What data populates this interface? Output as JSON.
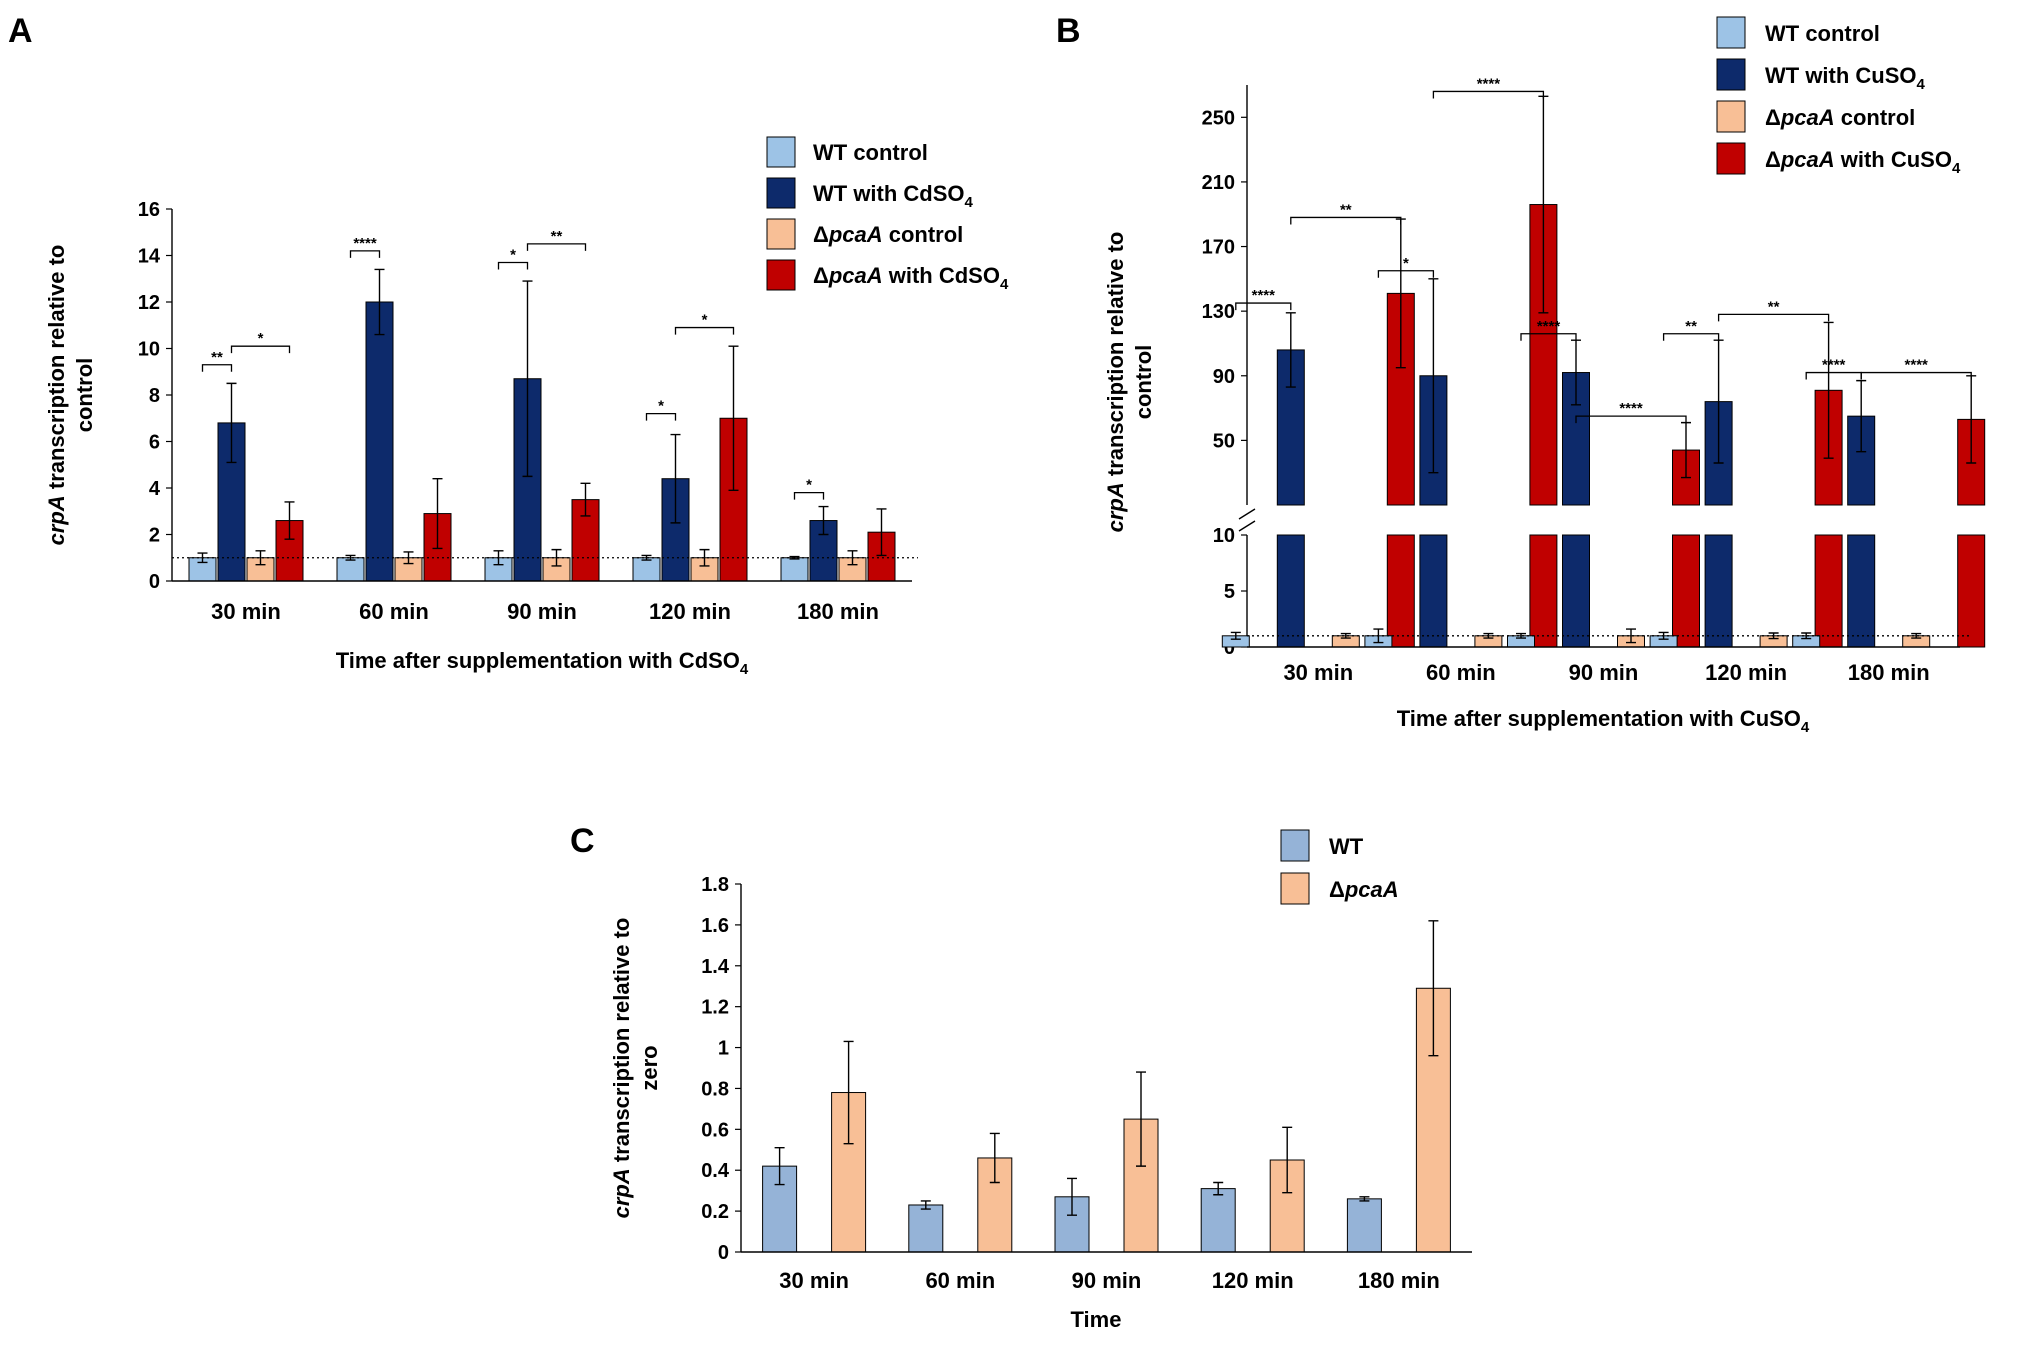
{
  "panels": {
    "A": {
      "label": "A"
    },
    "B": {
      "label": "B"
    },
    "C": {
      "label": "C"
    }
  },
  "chart_data": [
    {
      "id": "A",
      "type": "bar",
      "categories": [
        "30 min",
        "60 min",
        "90 min",
        "120 min",
        "180 min"
      ],
      "series": [
        {
          "name": "WT control",
          "color": "#9dc3e6",
          "values": [
            1.0,
            1.0,
            1.0,
            1.0,
            1.0
          ],
          "errors": [
            0.2,
            0.1,
            0.3,
            0.1,
            0.05
          ]
        },
        {
          "name": "WT with CdSO4",
          "color": "#0d2a6b",
          "values": [
            6.8,
            12.0,
            8.7,
            4.4,
            2.6
          ],
          "errors": [
            1.7,
            1.4,
            4.2,
            1.9,
            0.6
          ]
        },
        {
          "name": "ΔpcaA control",
          "color": "#f8bf96",
          "values": [
            1.0,
            1.0,
            1.0,
            1.0,
            1.0
          ],
          "errors": [
            0.3,
            0.25,
            0.35,
            0.35,
            0.3
          ]
        },
        {
          "name": "ΔpcaA with CdSO4",
          "color": "#c00000",
          "values": [
            2.6,
            2.9,
            3.5,
            7.0,
            2.1
          ],
          "errors": [
            0.8,
            1.5,
            0.7,
            3.1,
            1.0
          ]
        }
      ],
      "legend": [
        {
          "pre": "WT control",
          "ital": "",
          "post": ""
        },
        {
          "pre": "WT with CdSO",
          "ital": "",
          "post": "",
          "sub": "4"
        },
        {
          "pre": "Δ",
          "ital": "pcaA",
          "post": " control"
        },
        {
          "pre": "Δ",
          "ital": "pcaA",
          "post": " with CdSO",
          "sub": "4"
        }
      ],
      "significance": [
        {
          "cat": 0,
          "from": 0,
          "to": 1,
          "label": "**",
          "y": 9.3
        },
        {
          "cat": 0,
          "from": 1,
          "to": 3,
          "label": "*",
          "y": 10.1
        },
        {
          "cat": 1,
          "from": 0,
          "to": 1,
          "label": "****",
          "y": 14.2
        },
        {
          "cat": 2,
          "from": 0,
          "to": 1,
          "label": "*",
          "y": 13.7
        },
        {
          "cat": 2,
          "from": 1,
          "to": 3,
          "label": "**",
          "y": 14.5
        },
        {
          "cat": 3,
          "from": 0,
          "to": 1,
          "label": "*",
          "y": 7.2
        },
        {
          "cat": 3,
          "from": 1,
          "to": 3,
          "label": "*",
          "y": 10.9
        },
        {
          "cat": 4,
          "from": 0,
          "to": 1,
          "label": "*",
          "y": 3.8
        }
      ],
      "title": "",
      "xlabel": "Time after supplementation with CdSO",
      "xlabel_sub": "4",
      "ylabel_italic": "crpA",
      "ylabel_rest": " transcription relative to",
      "ylabel_line2": "control",
      "ylim": [
        0,
        16
      ],
      "yticks": [
        "0",
        "2",
        "4",
        "6",
        "8",
        "10",
        "12",
        "14",
        "16"
      ],
      "reference_line": 1,
      "legend_position": "top-right"
    },
    {
      "id": "B",
      "type": "bar",
      "broken_axis": true,
      "categories": [
        "30 min",
        "60 min",
        "90 min",
        "120 min",
        "180 min"
      ],
      "series": [
        {
          "name": "WT control",
          "color": "#9dc3e6",
          "values": [
            1.0,
            1.0,
            1.0,
            1.0,
            1.0
          ],
          "errors": [
            0.3,
            0.6,
            0.2,
            0.3,
            0.25
          ]
        },
        {
          "name": "WT with CuSO4",
          "color": "#0d2a6b",
          "values": [
            106,
            90,
            92,
            74,
            65
          ],
          "errors": [
            23,
            60,
            20,
            38,
            22
          ]
        },
        {
          "name": "ΔpcaA control",
          "color": "#f8bf96",
          "values": [
            1.0,
            1.0,
            1.0,
            1.0,
            1.0
          ],
          "errors": [
            0.2,
            0.2,
            0.6,
            0.25,
            0.2
          ]
        },
        {
          "name": "ΔpcaA with CuSO4",
          "color": "#c00000",
          "values": [
            141,
            196,
            44,
            81,
            63
          ],
          "errors": [
            46,
            67,
            17,
            42,
            27
          ]
        }
      ],
      "legend": [
        {
          "pre": "WT control",
          "ital": "",
          "post": ""
        },
        {
          "pre": "WT with CuSO",
          "ital": "",
          "post": "",
          "sub": "4"
        },
        {
          "pre": "Δ",
          "ital": "pcaA",
          "post": " control"
        },
        {
          "pre": "Δ",
          "ital": "pcaA",
          "post": " with CuSO",
          "sub": "4"
        }
      ],
      "significance": [
        {
          "cat": 0,
          "from": 0,
          "to": 1,
          "label": "****",
          "y": 135
        },
        {
          "cat": 0,
          "from": 1,
          "to": 3,
          "label": "**",
          "y": 188
        },
        {
          "cat": 1,
          "from": 0,
          "to": 1,
          "label": "*",
          "y": 155
        },
        {
          "cat": 1,
          "from": 1,
          "to": 3,
          "label": "****",
          "y": 266
        },
        {
          "cat": 2,
          "from": 0,
          "to": 1,
          "label": "****",
          "y": 116
        },
        {
          "cat": 2,
          "from": 1,
          "to": 3,
          "label": "****",
          "y": 65
        },
        {
          "cat": 3,
          "from": 0,
          "to": 1,
          "label": "**",
          "y": 116
        },
        {
          "cat": 3,
          "from": 1,
          "to": 3,
          "label": "**",
          "y": 128
        },
        {
          "cat": 4,
          "from": 0,
          "to": 1,
          "label": "****",
          "y": 92
        },
        {
          "cat": 4,
          "from": 1,
          "to": 3,
          "label": "****",
          "y": 92
        }
      ],
      "title": "",
      "xlabel": "Time after supplementation with CuSO",
      "xlabel_sub": "4",
      "ylabel_italic": "crpA",
      "ylabel_rest": " transcription relative to",
      "ylabel_line2": "control",
      "ylim_lower": [
        0,
        10
      ],
      "ylim_upper": [
        10,
        270
      ],
      "yticks_lower": [
        "0",
        "5",
        "10"
      ],
      "yticks_upper": [
        "50",
        "90",
        "130",
        "170",
        "210",
        "250"
      ],
      "reference_line": 1,
      "legend_position": "top-right"
    },
    {
      "id": "C",
      "type": "bar",
      "categories": [
        "30 min",
        "60 min",
        "90 min",
        "120 min",
        "180 min"
      ],
      "series": [
        {
          "name": "WT",
          "color": "#95b3d7",
          "values": [
            0.42,
            0.23,
            0.27,
            0.31,
            0.26
          ],
          "errors": [
            0.09,
            0.02,
            0.09,
            0.03,
            0.01
          ]
        },
        {
          "name": "ΔpcaA",
          "color": "#f8bf96",
          "values": [
            0.78,
            0.46,
            0.65,
            0.45,
            1.29
          ],
          "errors": [
            0.25,
            0.12,
            0.23,
            0.16,
            0.33
          ]
        }
      ],
      "legend": [
        {
          "pre": "WT",
          "ital": "",
          "post": ""
        },
        {
          "pre": "Δ",
          "ital": "pcaA",
          "post": ""
        }
      ],
      "title": "",
      "xlabel": "Time",
      "ylabel_italic": "crpA",
      "ylabel_rest": " transcription relative to",
      "ylabel_line2": "zero",
      "ylim": [
        0,
        1.8
      ],
      "yticks": [
        "0",
        "0.2",
        "0.4",
        "0.6",
        "0.8",
        "1",
        "1.2",
        "1.4",
        "1.6",
        "1.8"
      ],
      "legend_position": "top-right"
    }
  ]
}
